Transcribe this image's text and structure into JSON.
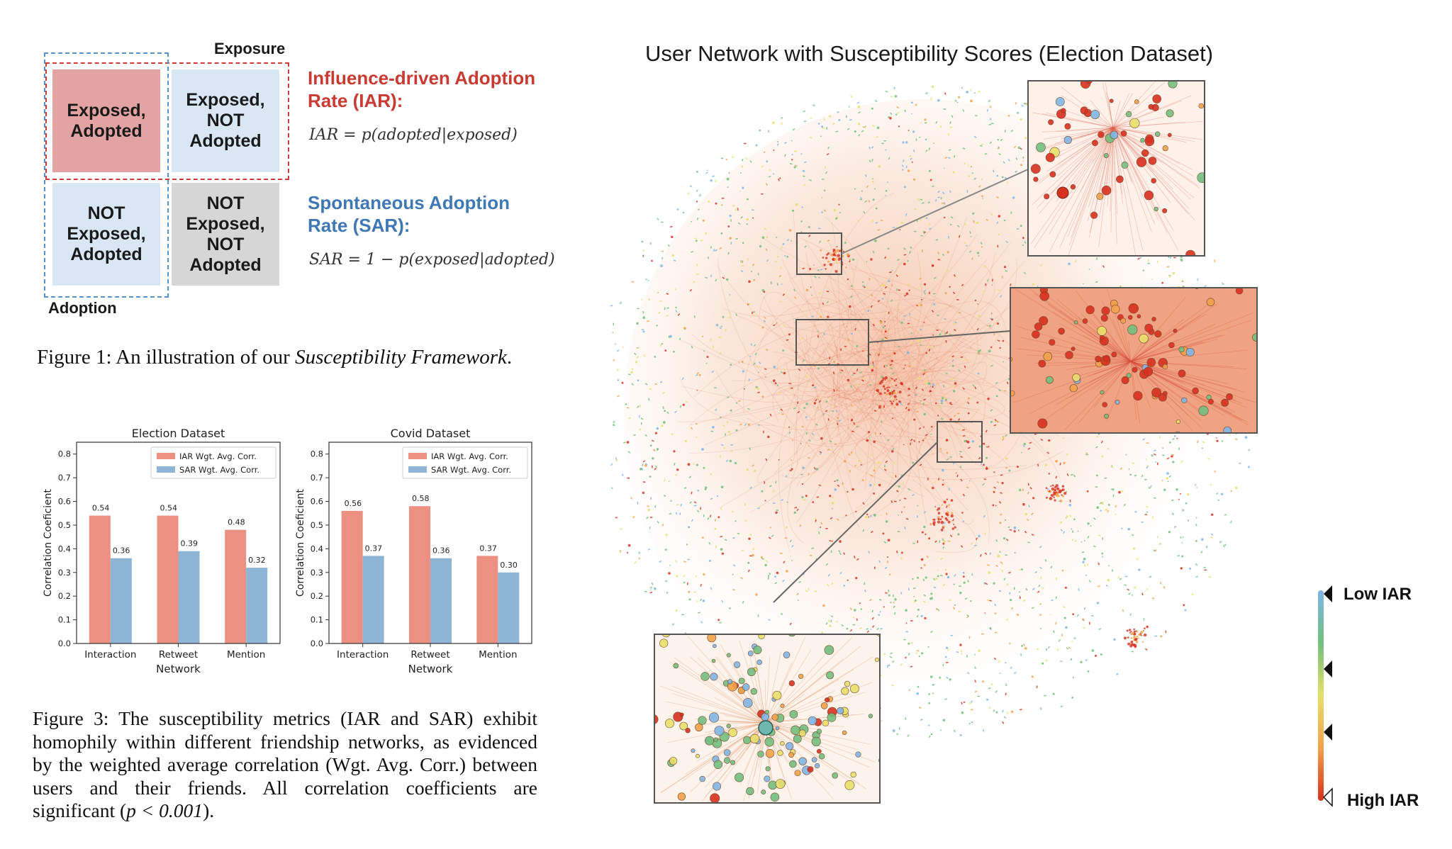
{
  "figure1": {
    "exposure_label": "Exposure",
    "adoption_label": "Adoption",
    "cells": {
      "exposed_adopted": [
        "Exposed,",
        "Adopted"
      ],
      "exposed_not_adopted": [
        "Exposed,",
        "NOT",
        "Adopted"
      ],
      "not_exposed_adopted": [
        "NOT",
        "Exposed,",
        "Adopted"
      ],
      "not_exposed_not_adopted": [
        "NOT",
        "Exposed,",
        "NOT",
        "Adopted"
      ]
    },
    "iar_title_line1": "Influence-driven Adoption",
    "iar_title_line2": "Rate (IAR):",
    "iar_formula": "IAR = p(adopted|exposed)",
    "sar_title_line1": "Spontaneous Adoption",
    "sar_title_line2": "Rate (SAR):",
    "sar_formula": "SAR = 1 − p(exposed|adopted)",
    "caption_prefix": "Figure 1: An illustration of our ",
    "caption_italic": "Susceptibility Framework",
    "caption_suffix": "."
  },
  "figure3": {
    "caption_main": "Figure 3: The susceptibility metrics (IAR and SAR) exhibit homophily within different friendship networks, as evidenced by the weighted average correlation (Wgt. Avg. Corr.) between users and their friends. All correlation coefficients are significant (",
    "caption_math": "p < 0.001",
    "caption_end": ")."
  },
  "colors": {
    "iar_bar": "#ec9082",
    "sar_bar": "#8eb4d6",
    "red_accent": "#c93a32",
    "blue_accent": "#3f78b4"
  },
  "chart_data": [
    {
      "type": "bar",
      "title": "Election Dataset",
      "categories": [
        "Interaction",
        "Retweet",
        "Mention"
      ],
      "series": [
        {
          "name": "IAR Wgt. Avg. Corr.",
          "values": [
            0.54,
            0.54,
            0.48
          ]
        },
        {
          "name": "SAR Wgt. Avg. Corr.",
          "values": [
            0.36,
            0.39,
            0.32
          ]
        }
      ],
      "data_labels": [
        [
          "0.54",
          "0.54",
          "0.48"
        ],
        [
          "0.36",
          "0.39",
          "0.32"
        ]
      ],
      "xlabel": "Network",
      "ylabel": "Correlation Coeficient",
      "ylim": [
        0,
        0.85
      ],
      "yticks": [
        "0.0",
        "0.1",
        "0.2",
        "0.3",
        "0.4",
        "0.5",
        "0.6",
        "0.7",
        "0.8"
      ],
      "legend_position": "top-right",
      "grid": false
    },
    {
      "type": "bar",
      "title": "Covid Dataset",
      "categories": [
        "Interaction",
        "Retweet",
        "Mention"
      ],
      "series": [
        {
          "name": "IAR Wgt. Avg. Corr.",
          "values": [
            0.56,
            0.58,
            0.37
          ]
        },
        {
          "name": "SAR Wgt. Avg. Corr.",
          "values": [
            0.37,
            0.36,
            0.3
          ]
        }
      ],
      "data_labels": [
        [
          "0.56",
          "0.58",
          "0.37"
        ],
        [
          "0.37",
          "0.36",
          "0.30"
        ]
      ],
      "xlabel": "Network",
      "ylabel": "Correlation Coeficient",
      "ylim": [
        0,
        0.85
      ],
      "yticks": [
        "0.0",
        "0.1",
        "0.2",
        "0.3",
        "0.4",
        "0.5",
        "0.6",
        "0.7",
        "0.8"
      ],
      "legend_position": "top-right",
      "grid": false
    }
  ],
  "network": {
    "title": "User Network with Susceptibility Scores (Election Dataset)",
    "colorbar_low": "Low IAR",
    "colorbar_high": "High IAR",
    "colorbar_colors": [
      "#7fb6e6",
      "#72bf7e",
      "#e8df6a",
      "#f0a24a",
      "#d7301f"
    ]
  }
}
